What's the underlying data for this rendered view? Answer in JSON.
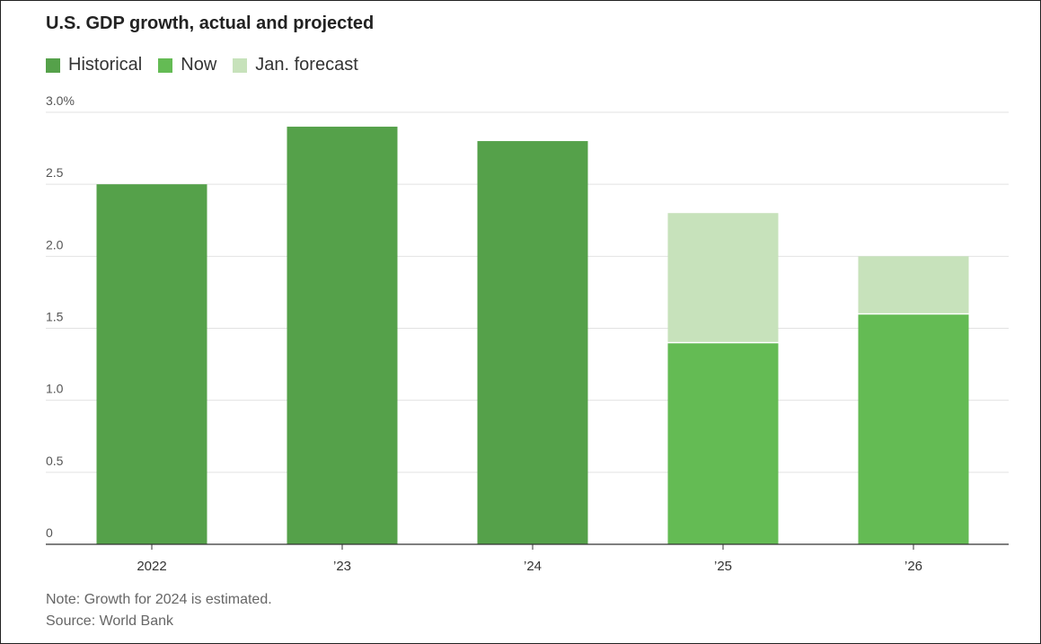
{
  "title": "U.S. GDP growth, actual and projected",
  "legend": [
    {
      "label": "Historical",
      "color": "#55a14a"
    },
    {
      "label": "Now",
      "color": "#64bb54"
    },
    {
      "label": "Jan. forecast",
      "color": "#c7e2bb"
    }
  ],
  "note": "Note: Growth for 2024 is estimated.",
  "source": "Source: World Bank",
  "chart_data": {
    "type": "bar",
    "stacking": "overlay",
    "categories": [
      "2022",
      "’23",
      "’24",
      "’25",
      "’26"
    ],
    "ylim": [
      0,
      3.0
    ],
    "yticks": [
      0,
      0.5,
      1.0,
      1.5,
      2.0,
      2.5,
      3.0
    ],
    "ytick_labels": [
      "0",
      "0.5",
      "1.0",
      "1.5",
      "2.0",
      "2.5",
      "3.0%"
    ],
    "grid": true,
    "legend_position": "top-left",
    "series": [
      {
        "name": "Historical",
        "values": [
          2.5,
          2.9,
          2.8,
          null,
          null
        ]
      },
      {
        "name": "Now",
        "values": [
          null,
          null,
          null,
          1.4,
          1.6
        ]
      },
      {
        "name": "Jan. forecast",
        "values": [
          null,
          null,
          null,
          2.3,
          2.0
        ]
      }
    ]
  }
}
